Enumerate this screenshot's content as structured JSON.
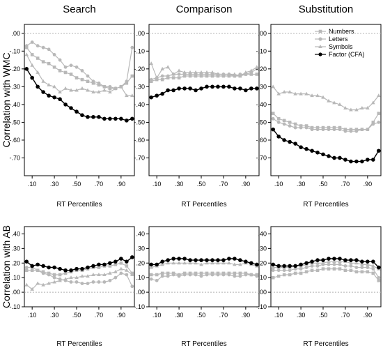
{
  "chart_data": {
    "type": "line",
    "layout": "2x3 small multiples",
    "column_titles": [
      "Search",
      "Comparison",
      "Substitution"
    ],
    "row_labels": [
      "Correlation with WMC",
      "Correlation with AB"
    ],
    "xlabel": "RT Percentiles",
    "x": [
      0.05,
      0.1,
      0.15,
      0.2,
      0.25,
      0.3,
      0.35,
      0.4,
      0.45,
      0.5,
      0.55,
      0.6,
      0.65,
      0.7,
      0.75,
      0.8,
      0.85,
      0.9,
      0.95,
      1.0
    ],
    "x_tick_labels": [
      ".10",
      ".30",
      ".50",
      ".70",
      ".90"
    ],
    "x_tick_values": [
      0.1,
      0.3,
      0.5,
      0.7,
      0.9
    ],
    "legend": {
      "placement": "top-right of the WMC Substitution panel",
      "entries": [
        "Numbers",
        "Letters",
        "Symbols",
        "Factor (CFA)"
      ]
    },
    "series_styles": {
      "Numbers": {
        "color": "#b8b8b8",
        "marker": "square"
      },
      "Letters": {
        "color": "#b8b8b8",
        "marker": "circle"
      },
      "Symbols": {
        "color": "#b8b8b8",
        "marker": "triangle"
      },
      "Factor (CFA)": {
        "color": "#000000",
        "marker": "circle"
      }
    },
    "rows": [
      {
        "ylim": [
          -0.8,
          0.05
        ],
        "yticks": [
          0.0,
          -0.1,
          -0.2,
          -0.3,
          -0.4,
          -0.5,
          -0.6,
          -0.7
        ],
        "ytick_labels": [
          ".00",
          "-.10",
          "-.20",
          "-.30",
          "-.40",
          "-.50",
          "-.60",
          "-.70"
        ],
        "zero_line": 0.0,
        "panels": [
          {
            "title": "Search",
            "series": [
              {
                "name": "Numbers",
                "values": [
                  -0.08,
                  -0.12,
                  -0.14,
                  -0.16,
                  -0.17,
                  -0.19,
                  -0.21,
                  -0.22,
                  -0.23,
                  -0.25,
                  -0.26,
                  -0.27,
                  -0.28,
                  -0.29,
                  -0.3,
                  -0.31,
                  -0.31,
                  -0.3,
                  -0.28,
                  -0.24
                ]
              },
              {
                "name": "Letters",
                "values": [
                  -0.07,
                  -0.05,
                  -0.07,
                  -0.08,
                  -0.09,
                  -0.12,
                  -0.15,
                  -0.19,
                  -0.18,
                  -0.19,
                  -0.21,
                  -0.24,
                  -0.27,
                  -0.28,
                  -0.3,
                  -0.3,
                  -0.31,
                  -0.3,
                  -0.27,
                  -0.08
                ]
              },
              {
                "name": "Symbols",
                "values": [
                  -0.12,
                  -0.18,
                  -0.22,
                  -0.27,
                  -0.29,
                  -0.3,
                  -0.33,
                  -0.31,
                  -0.32,
                  -0.32,
                  -0.31,
                  -0.32,
                  -0.33,
                  -0.33,
                  -0.32,
                  -0.33,
                  -0.31,
                  -0.3,
                  -0.35,
                  -0.35
                ]
              },
              {
                "name": "Factor (CFA)",
                "values": [
                  -0.2,
                  -0.25,
                  -0.3,
                  -0.33,
                  -0.35,
                  -0.36,
                  -0.37,
                  -0.4,
                  -0.42,
                  -0.44,
                  -0.46,
                  -0.47,
                  -0.47,
                  -0.47,
                  -0.48,
                  -0.48,
                  -0.48,
                  -0.48,
                  -0.49,
                  -0.48
                ]
              }
            ]
          },
          {
            "title": "Comparison",
            "series": [
              {
                "name": "Numbers",
                "values": [
                  -0.27,
                  -0.26,
                  -0.26,
                  -0.25,
                  -0.25,
                  -0.25,
                  -0.24,
                  -0.24,
                  -0.24,
                  -0.24,
                  -0.24,
                  -0.24,
                  -0.24,
                  -0.24,
                  -0.24,
                  -0.24,
                  -0.24,
                  -0.23,
                  -0.23,
                  -0.23
                ]
              },
              {
                "name": "Letters",
                "values": [
                  -0.26,
                  -0.25,
                  -0.24,
                  -0.24,
                  -0.23,
                  -0.23,
                  -0.23,
                  -0.23,
                  -0.23,
                  -0.23,
                  -0.23,
                  -0.23,
                  -0.23,
                  -0.23,
                  -0.23,
                  -0.24,
                  -0.23,
                  -0.23,
                  -0.22,
                  -0.2
                ]
              },
              {
                "name": "Symbols",
                "values": [
                  -0.17,
                  -0.25,
                  -0.2,
                  -0.19,
                  -0.23,
                  -0.21,
                  -0.22,
                  -0.22,
                  -0.22,
                  -0.22,
                  -0.22,
                  -0.22,
                  -0.23,
                  -0.23,
                  -0.23,
                  -0.23,
                  -0.24,
                  -0.22,
                  -0.21,
                  -0.19
                ]
              },
              {
                "name": "Factor (CFA)",
                "values": [
                  -0.36,
                  -0.35,
                  -0.34,
                  -0.32,
                  -0.32,
                  -0.31,
                  -0.31,
                  -0.31,
                  -0.32,
                  -0.31,
                  -0.3,
                  -0.3,
                  -0.3,
                  -0.3,
                  -0.3,
                  -0.31,
                  -0.31,
                  -0.32,
                  -0.31,
                  -0.31
                ]
              }
            ]
          },
          {
            "title": "Substitution",
            "series": [
              {
                "name": "Numbers",
                "values": [
                  -0.45,
                  -0.48,
                  -0.49,
                  -0.5,
                  -0.51,
                  -0.52,
                  -0.52,
                  -0.53,
                  -0.53,
                  -0.53,
                  -0.53,
                  -0.53,
                  -0.53,
                  -0.54,
                  -0.54,
                  -0.54,
                  -0.54,
                  -0.54,
                  -0.5,
                  -0.45
                ]
              },
              {
                "name": "Letters",
                "values": [
                  -0.48,
                  -0.5,
                  -0.51,
                  -0.52,
                  -0.53,
                  -0.53,
                  -0.53,
                  -0.54,
                  -0.54,
                  -0.54,
                  -0.54,
                  -0.54,
                  -0.54,
                  -0.55,
                  -0.55,
                  -0.55,
                  -0.54,
                  -0.54,
                  -0.51,
                  -0.5
                ]
              },
              {
                "name": "Symbols",
                "values": [
                  -0.3,
                  -0.34,
                  -0.33,
                  -0.33,
                  -0.34,
                  -0.34,
                  -0.34,
                  -0.35,
                  -0.35,
                  -0.36,
                  -0.38,
                  -0.39,
                  -0.4,
                  -0.42,
                  -0.43,
                  -0.43,
                  -0.42,
                  -0.42,
                  -0.39,
                  -0.35
                ]
              },
              {
                "name": "Factor (CFA)",
                "values": [
                  -0.54,
                  -0.58,
                  -0.6,
                  -0.61,
                  -0.62,
                  -0.64,
                  -0.65,
                  -0.66,
                  -0.67,
                  -0.68,
                  -0.69,
                  -0.7,
                  -0.7,
                  -0.71,
                  -0.72,
                  -0.72,
                  -0.72,
                  -0.71,
                  -0.71,
                  -0.66
                ]
              }
            ]
          }
        ]
      },
      {
        "ylim": [
          -0.1,
          0.45
        ],
        "yticks": [
          0.4,
          0.3,
          0.2,
          0.1,
          0.0,
          -0.1
        ],
        "ytick_labels": [
          ".40",
          ".30",
          ".20",
          ".10",
          ".00",
          "-.10"
        ],
        "zero_line": 0.0,
        "panels": [
          {
            "title": "Search",
            "series": [
              {
                "name": "Numbers",
                "values": [
                  0.15,
                  0.15,
                  0.15,
                  0.14,
                  0.13,
                  0.12,
                  0.12,
                  0.13,
                  0.14,
                  0.15,
                  0.15,
                  0.16,
                  0.17,
                  0.17,
                  0.18,
                  0.18,
                  0.19,
                  0.2,
                  0.18,
                  0.13
                ]
              },
              {
                "name": "Letters",
                "values": [
                  0.17,
                  0.17,
                  0.15,
                  0.13,
                  0.12,
                  0.1,
                  0.09,
                  0.08,
                  0.07,
                  0.07,
                  0.06,
                  0.06,
                  0.07,
                  0.07,
                  0.07,
                  0.08,
                  0.1,
                  0.13,
                  0.12,
                  0.04
                ]
              },
              {
                "name": "Symbols",
                "values": [
                  0.05,
                  0.02,
                  0.06,
                  0.05,
                  0.06,
                  0.07,
                  0.08,
                  0.09,
                  0.1,
                  0.1,
                  0.11,
                  0.11,
                  0.12,
                  0.12,
                  0.12,
                  0.13,
                  0.14,
                  0.16,
                  0.15,
                  0.12
                ]
              },
              {
                "name": "Factor (CFA)",
                "values": [
                  0.21,
                  0.18,
                  0.19,
                  0.18,
                  0.17,
                  0.17,
                  0.16,
                  0.15,
                  0.15,
                  0.16,
                  0.16,
                  0.17,
                  0.18,
                  0.19,
                  0.19,
                  0.2,
                  0.21,
                  0.23,
                  0.21,
                  0.24
                ]
              }
            ]
          },
          {
            "title": "Comparison",
            "series": [
              {
                "name": "Numbers",
                "values": [
                  0.12,
                  0.12,
                  0.13,
                  0.13,
                  0.13,
                  0.12,
                  0.13,
                  0.13,
                  0.13,
                  0.13,
                  0.13,
                  0.13,
                  0.13,
                  0.13,
                  0.13,
                  0.13,
                  0.13,
                  0.13,
                  0.12,
                  0.12
                ]
              },
              {
                "name": "Letters",
                "values": [
                  0.09,
                  0.08,
                  0.11,
                  0.11,
                  0.12,
                  0.11,
                  0.12,
                  0.12,
                  0.12,
                  0.11,
                  0.12,
                  0.12,
                  0.12,
                  0.12,
                  0.12,
                  0.11,
                  0.11,
                  0.12,
                  0.12,
                  0.11
                ]
              },
              {
                "name": "Symbols",
                "values": [
                  0.17,
                  0.18,
                  0.19,
                  0.2,
                  0.2,
                  0.2,
                  0.2,
                  0.2,
                  0.2,
                  0.19,
                  0.2,
                  0.2,
                  0.2,
                  0.2,
                  0.2,
                  0.19,
                  0.19,
                  0.2,
                  0.19,
                  0.18
                ]
              },
              {
                "name": "Factor (CFA)",
                "values": [
                  0.19,
                  0.19,
                  0.21,
                  0.22,
                  0.23,
                  0.23,
                  0.23,
                  0.22,
                  0.22,
                  0.22,
                  0.22,
                  0.22,
                  0.22,
                  0.22,
                  0.23,
                  0.23,
                  0.22,
                  0.21,
                  0.2,
                  0.19
                ]
              }
            ]
          },
          {
            "title": "Substitution",
            "series": [
              {
                "name": "Numbers",
                "values": [
                  0.1,
                  0.11,
                  0.12,
                  0.12,
                  0.13,
                  0.13,
                  0.14,
                  0.15,
                  0.15,
                  0.16,
                  0.16,
                  0.16,
                  0.16,
                  0.15,
                  0.15,
                  0.14,
                  0.14,
                  0.14,
                  0.13,
                  0.08
                ]
              },
              {
                "name": "Letters",
                "values": [
                  0.15,
                  0.15,
                  0.15,
                  0.15,
                  0.16,
                  0.16,
                  0.17,
                  0.18,
                  0.18,
                  0.19,
                  0.19,
                  0.19,
                  0.19,
                  0.18,
                  0.18,
                  0.17,
                  0.17,
                  0.17,
                  0.16,
                  0.1
                ]
              },
              {
                "name": "Symbols",
                "values": [
                  0.17,
                  0.17,
                  0.17,
                  0.17,
                  0.18,
                  0.18,
                  0.19,
                  0.2,
                  0.2,
                  0.2,
                  0.21,
                  0.21,
                  0.21,
                  0.21,
                  0.2,
                  0.2,
                  0.19,
                  0.19,
                  0.18,
                  0.16
                ]
              },
              {
                "name": "Factor (CFA)",
                "values": [
                  0.19,
                  0.18,
                  0.18,
                  0.18,
                  0.18,
                  0.19,
                  0.2,
                  0.21,
                  0.22,
                  0.22,
                  0.23,
                  0.23,
                  0.23,
                  0.22,
                  0.22,
                  0.22,
                  0.21,
                  0.21,
                  0.21,
                  0.17
                ]
              }
            ]
          }
        ]
      }
    ]
  }
}
